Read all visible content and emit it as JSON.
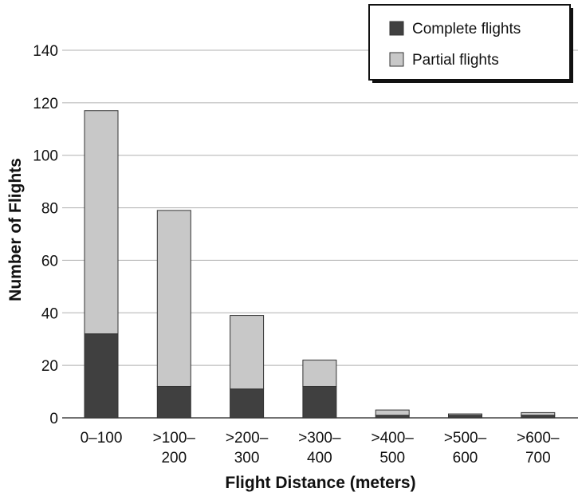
{
  "chart_data": {
    "type": "bar",
    "stacked": true,
    "categories": [
      [
        "0–100"
      ],
      [
        ">100–",
        "200"
      ],
      [
        ">200–",
        "300"
      ],
      [
        ">300–",
        "400"
      ],
      [
        ">400–",
        "500"
      ],
      [
        ">500–",
        "600"
      ],
      [
        ">600–",
        "700"
      ]
    ],
    "series": [
      {
        "name": "Complete flights",
        "color": "#404040",
        "values": [
          32,
          12,
          11,
          12,
          1,
          1,
          1
        ]
      },
      {
        "name": "Partial flights",
        "color": "#c8c8c8",
        "values": [
          85,
          67,
          28,
          10,
          2,
          0.5,
          1
        ]
      }
    ],
    "xlabel": "Flight Distance (meters)",
    "ylabel": "Number of Flights",
    "ylim": [
      0,
      140
    ],
    "yticks": [
      0,
      20,
      40,
      60,
      80,
      100,
      120,
      140
    ],
    "grid": true,
    "legend_position": "top-right"
  }
}
